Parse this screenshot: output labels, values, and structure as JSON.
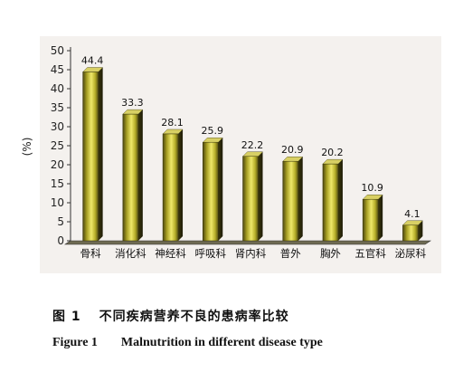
{
  "chart_data": {
    "type": "bar",
    "title": "",
    "xlabel": "",
    "ylabel": "(%)",
    "ylim": [
      0,
      50
    ],
    "yticks": [
      0,
      5,
      10,
      15,
      20,
      25,
      30,
      35,
      40,
      45,
      50
    ],
    "grid": false,
    "categories": [
      "骨科",
      "消化科",
      "神经科",
      "呼吸科",
      "肾内科",
      "普外",
      "胸外",
      "五官科",
      "泌尿科"
    ],
    "values": [
      44.4,
      33.3,
      28.1,
      25.9,
      22.2,
      20.9,
      20.2,
      10.9,
      4.1
    ],
    "value_labels": [
      "44.4",
      "33.3",
      "28.1",
      "25.9",
      "22.2",
      "20.9",
      "20.2",
      "10.9",
      "4.1"
    ],
    "bar_color": "#c8c02e"
  },
  "caption": {
    "cn_number": "图 1",
    "cn_text": "不同疾病营养不良的患病率比较",
    "en_number": "Figure 1",
    "en_text": "Malnutrition in different disease type"
  }
}
